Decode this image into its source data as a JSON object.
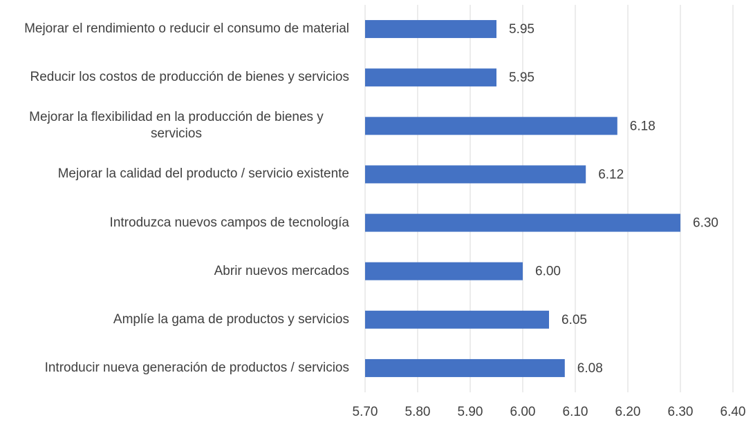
{
  "chart_data": {
    "type": "barh",
    "categories": [
      "Mejorar el rendimiento o reducir el consumo de material",
      "Reducir los costos de producción de bienes y servicios",
      "Mejorar la flexibilidad en la producción de bienes y servicios",
      "Mejorar la calidad del producto / servicio existente",
      "Introduzca nuevos campos de tecnología",
      "Abrir nuevos mercados",
      "Amplíe la gama de productos y servicios",
      "Introducir nueva generación de productos / servicios"
    ],
    "values": [
      5.95,
      5.95,
      6.18,
      6.12,
      6.3,
      6.0,
      6.05,
      6.08
    ],
    "value_labels": [
      "5.95",
      "5.95",
      "6.18",
      "6.12",
      "6.30",
      "6.00",
      "6.05",
      "6.08"
    ],
    "color": "#4472c4",
    "xlim": [
      5.7,
      6.4
    ],
    "xticks": [
      {
        "value": 5.7,
        "label": "5.70"
      },
      {
        "value": 5.8,
        "label": "5.80"
      },
      {
        "value": 5.9,
        "label": "5.90"
      },
      {
        "value": 6.0,
        "label": "6.00"
      },
      {
        "value": 6.1,
        "label": "6.10"
      },
      {
        "value": 6.2,
        "label": "6.20"
      },
      {
        "value": 6.3,
        "label": "6.30"
      },
      {
        "value": 6.4,
        "label": "6.40"
      }
    ],
    "grid": true
  }
}
